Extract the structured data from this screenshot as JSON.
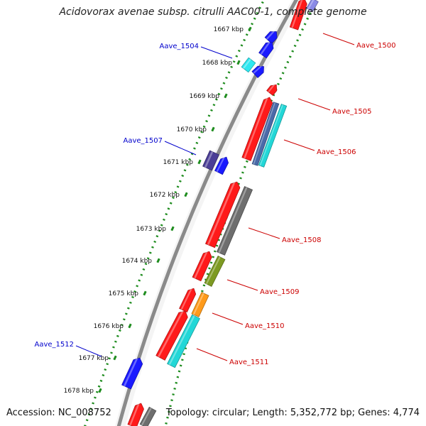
{
  "title": "Acidovorax avenae subsp. citrulli AAC00-1, complete genome",
  "footer": {
    "accession": "Accession: NC_008752",
    "summary": "Topology: circular; Length: 5,352,772 bp; Genes: 4,774"
  },
  "colors": {
    "backbone": "#8a8a8a",
    "scale_dots": "#1e8c1e",
    "forward_label": "#0000cc",
    "reverse_label": "#cc0000"
  },
  "ticks": [
    "1667 kbp",
    "1668 kbp",
    "1669 kbp",
    "1670 kbp",
    "1671 kbp",
    "1672 kbp",
    "1673 kbp",
    "1674 kbp",
    "1675 kbp",
    "1676 kbp",
    "1677 kbp",
    "1678 kbp"
  ],
  "gene_labels_forward": [
    "Aave_1504",
    "Aave_1507",
    "Aave_1512"
  ],
  "gene_labels_reverse": [
    "Aave_1500",
    "Aave_1505",
    "Aave_1506",
    "Aave_1508",
    "Aave_1509",
    "Aave_1510",
    "Aave_1511"
  ]
}
